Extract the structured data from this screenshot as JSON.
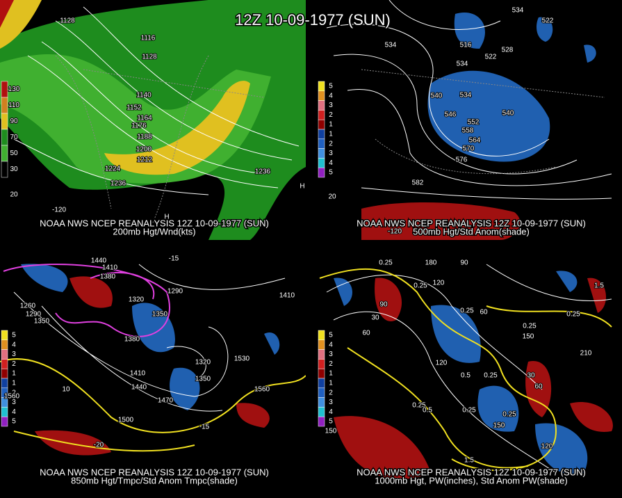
{
  "header": {
    "title": "12Z 10-09-1977 (SUN)"
  },
  "panels": [
    {
      "caption_line1": "NOAA NWS NCEP REANALYSIS 12Z 10-09-1977 (SUN)",
      "caption_line2": "200mb Hgt/Wnd(kts)",
      "legend": [
        {
          "label": "130",
          "color": "#b01010"
        },
        {
          "label": "110",
          "color": "#d08020"
        },
        {
          "label": "90",
          "color": "#e0c020"
        },
        {
          "label": "70",
          "color": "#1e8c1e"
        },
        {
          "label": "50",
          "color": "#40b030"
        },
        {
          "label": "30",
          "color": "#000000"
        }
      ],
      "labels": [
        "1128",
        "1116",
        "1128",
        "1140",
        "1152",
        "1164",
        "1176",
        "1188",
        "1200",
        "1212",
        "1224",
        "1236",
        "1236",
        "H",
        "H",
        "-120",
        "20"
      ]
    },
    {
      "caption_line1": "NOAA NWS NCEP REANALYSIS 12Z 10-09-1977 (SUN)",
      "caption_line2": "500mb Hgt/Std Anom(shade)",
      "legend": [
        {
          "label": "5",
          "color": "#f0e020"
        },
        {
          "label": "4",
          "color": "#e09020"
        },
        {
          "label": "3",
          "color": "#e07080"
        },
        {
          "label": "2",
          "color": "#d02020"
        },
        {
          "label": "1",
          "color": "#900000"
        },
        {
          "label": "1",
          "color": "#1040a0"
        },
        {
          "label": "2",
          "color": "#2060c0"
        },
        {
          "label": "3",
          "color": "#4090e0"
        },
        {
          "label": "4",
          "color": "#20c0d0"
        },
        {
          "label": "5",
          "color": "#9020c0"
        }
      ],
      "labels": [
        "534",
        "522",
        "534",
        "516",
        "528",
        "522",
        "534",
        "540",
        "534",
        "546",
        "552",
        "558",
        "564",
        "570",
        "576",
        "540",
        "582",
        "20",
        "-120"
      ]
    },
    {
      "caption_line1": "NOAA NWS NCEP REANALYSIS 12Z 10-09-1977 (SUN)",
      "caption_line2": "850mb Hgt/Tmpc/Std Anom Tmpc(shade)",
      "legend": [
        {
          "label": "5",
          "color": "#f0e020"
        },
        {
          "label": "4",
          "color": "#e09020"
        },
        {
          "label": "3",
          "color": "#e07080"
        },
        {
          "label": "2",
          "color": "#d02020"
        },
        {
          "label": "1",
          "color": "#900000"
        },
        {
          "label": "1",
          "color": "#1040a0"
        },
        {
          "label": "2",
          "color": "#2060c0"
        },
        {
          "label": "3",
          "color": "#4090e0"
        },
        {
          "label": "4",
          "color": "#20c0d0"
        },
        {
          "label": "5",
          "color": "#9020c0"
        }
      ],
      "labels": [
        "-15",
        "1440",
        "1410",
        "1380",
        "1320",
        "1290",
        "1350",
        "1380",
        "1410",
        "1440",
        "1470",
        "1500",
        "1320",
        "1350",
        "1530",
        "1560",
        "1410",
        "1260",
        "1290",
        "1350",
        "10",
        "-15",
        "-20",
        "1560"
      ]
    },
    {
      "caption_line1": "NOAA NWS NCEP REANALYSIS 12Z 10-09-1977 (SUN)",
      "caption_line2": "1000mb Hgt, PW(inches), Std Anom PW(shade)",
      "legend": [
        {
          "label": "5",
          "color": "#f0e020"
        },
        {
          "label": "4",
          "color": "#e09020"
        },
        {
          "label": "3",
          "color": "#e07080"
        },
        {
          "label": "2",
          "color": "#d02020"
        },
        {
          "label": "1",
          "color": "#900000"
        },
        {
          "label": "1",
          "color": "#1040a0"
        },
        {
          "label": "2",
          "color": "#2060c0"
        },
        {
          "label": "3",
          "color": "#4090e0"
        },
        {
          "label": "4",
          "color": "#20c0d0"
        },
        {
          "label": "5",
          "color": "#9020c0"
        }
      ],
      "labels": [
        "0.25",
        "180",
        "90",
        "120",
        "0.25",
        "90",
        "30",
        "60",
        "0.25",
        "60",
        "0.25",
        "0.25",
        "150",
        "210",
        "120",
        "0.5",
        "0.25",
        "30",
        "60",
        "0.25",
        "0.5",
        "0.25",
        "0.25",
        "150",
        "120",
        "150",
        "1.5",
        "1.5"
      ]
    }
  ]
}
